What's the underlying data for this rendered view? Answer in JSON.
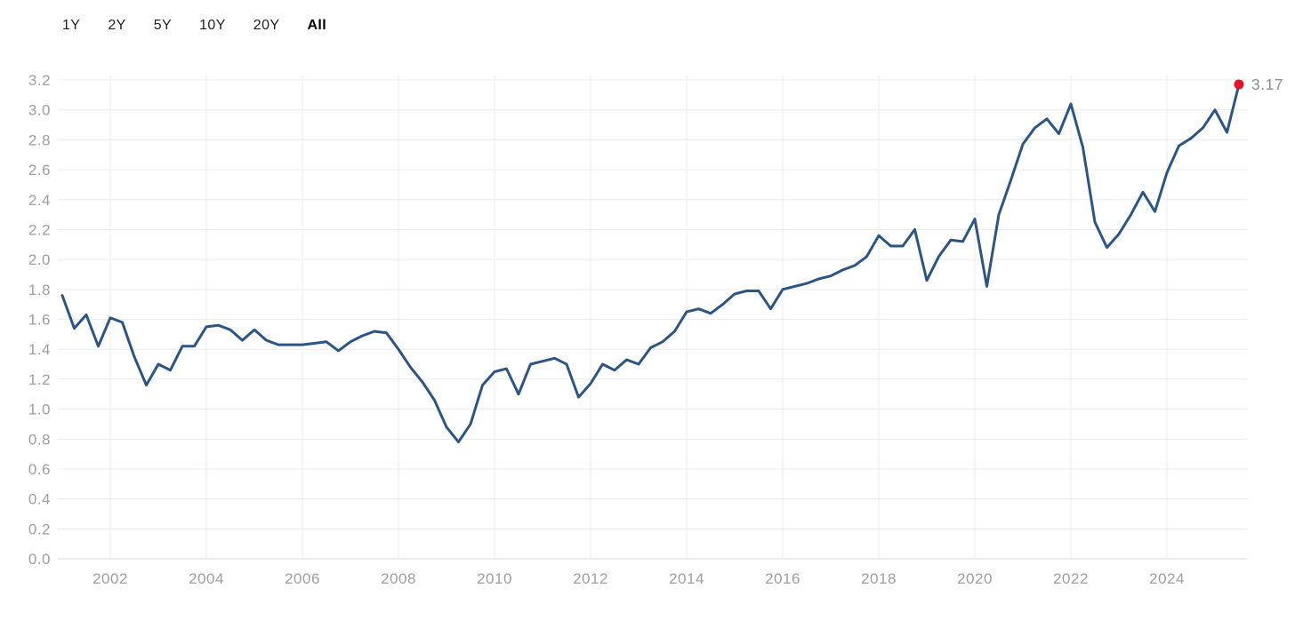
{
  "toolbar": {
    "ranges": [
      {
        "label": "1Y",
        "selected": false
      },
      {
        "label": "2Y",
        "selected": false
      },
      {
        "label": "5Y",
        "selected": false
      },
      {
        "label": "10Y",
        "selected": false
      },
      {
        "label": "20Y",
        "selected": false
      },
      {
        "label": "All",
        "selected": true
      }
    ]
  },
  "chart_data": {
    "type": "line",
    "x_start": 2001.0,
    "x_step": 0.25,
    "values": [
      1.76,
      1.54,
      1.63,
      1.42,
      1.61,
      1.58,
      1.35,
      1.16,
      1.3,
      1.26,
      1.42,
      1.42,
      1.55,
      1.56,
      1.53,
      1.46,
      1.53,
      1.46,
      1.43,
      1.43,
      1.43,
      1.44,
      1.45,
      1.39,
      1.45,
      1.49,
      1.52,
      1.51,
      1.4,
      1.28,
      1.18,
      1.06,
      0.88,
      0.78,
      0.9,
      1.16,
      1.25,
      1.27,
      1.1,
      1.3,
      1.32,
      1.34,
      1.3,
      1.08,
      1.17,
      1.3,
      1.26,
      1.33,
      1.3,
      1.41,
      1.45,
      1.52,
      1.65,
      1.67,
      1.64,
      1.7,
      1.77,
      1.79,
      1.79,
      1.67,
      1.8,
      1.82,
      1.84,
      1.87,
      1.89,
      1.93,
      1.96,
      2.02,
      2.16,
      2.09,
      2.09,
      2.2,
      1.86,
      2.02,
      2.13,
      2.12,
      2.27,
      1.82,
      2.3,
      2.53,
      2.77,
      2.88,
      2.94,
      2.84,
      3.04,
      2.75,
      2.25,
      2.08,
      2.17,
      2.3,
      2.45,
      2.32,
      2.58,
      2.76,
      2.81,
      2.88,
      3.0,
      2.85,
      3.17
    ],
    "x_tick_labels": [
      "2002",
      "2004",
      "2006",
      "2008",
      "2010",
      "2012",
      "2014",
      "2016",
      "2018",
      "2020",
      "2022",
      "2024"
    ],
    "y_tick_labels": [
      "0.0",
      "0.2",
      "0.4",
      "0.6",
      "0.8",
      "1.0",
      "1.2",
      "1.4",
      "1.6",
      "1.8",
      "2.0",
      "2.2",
      "2.4",
      "2.6",
      "2.8",
      "3.0",
      "3.2"
    ],
    "ylim": [
      0,
      3.2
    ],
    "grid": true,
    "legend_position": "none",
    "last_point_label": "3.17",
    "colors": {
      "line": "#2b5585",
      "marker": "#e11428",
      "last_label": "#8d8d8d",
      "tick_label": "#9e9e9e",
      "grid": "#ececec",
      "axis": "#d8d8d8"
    }
  }
}
